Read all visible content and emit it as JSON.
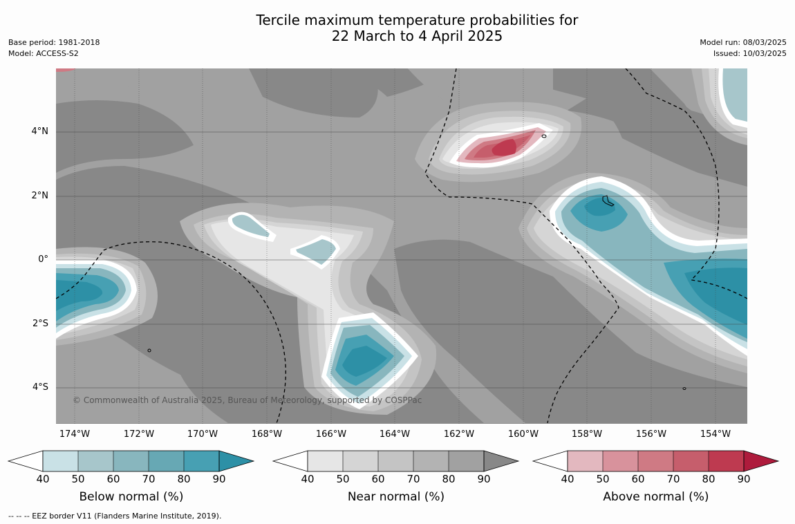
{
  "title": {
    "line1": "Tercile maximum temperature probabilities for",
    "line2": "22 March to 4 April 2025"
  },
  "meta_left": {
    "base_period": "Base period: 1981-2018",
    "model": "Model: ACCESS-S2"
  },
  "meta_right": {
    "model_run": "Model run: 08/03/2025",
    "issued": "Issued: 10/03/2025"
  },
  "map": {
    "lat_labels": [
      "4°N",
      "2°N",
      "0°",
      "2°S",
      "4°S"
    ],
    "lon_labels": [
      "174°W",
      "172°W",
      "170°W",
      "168°W",
      "166°W",
      "164°W",
      "162°W",
      "160°W",
      "158°W",
      "156°W",
      "154°W"
    ],
    "copyright": "© Commonwealth of Australia 2025, Bureau of Meteorology, supported by COSPPac"
  },
  "colorbars": [
    {
      "label": "Below normal (%)",
      "ticks": [
        "40",
        "50",
        "60",
        "70",
        "80",
        "90"
      ],
      "colors": [
        "#c9e1e6",
        "#a7c6cb",
        "#88b6be",
        "#67a8b4",
        "#47a0b3",
        "#2d90a6"
      ]
    },
    {
      "label": "Near normal (%)",
      "ticks": [
        "40",
        "50",
        "60",
        "70",
        "80",
        "90"
      ],
      "colors": [
        "#e6e6e6",
        "#d5d5d5",
        "#c4c4c4",
        "#b3b3b3",
        "#a1a1a1",
        "#888888"
      ]
    },
    {
      "label": "Above normal (%)",
      "ticks": [
        "40",
        "50",
        "60",
        "70",
        "80",
        "90"
      ],
      "colors": [
        "#e3b8bf",
        "#d8929c",
        "#cf7a84",
        "#c65e6c",
        "#be3a50",
        "#ae1b3c"
      ]
    }
  ],
  "footer": "--  --  -- EEZ border V11 (Flanders Marine Institute, 2019)."
}
